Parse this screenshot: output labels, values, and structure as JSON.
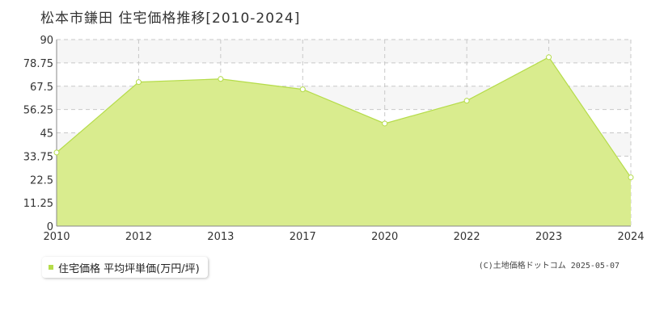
{
  "chart_data": {
    "type": "area",
    "title": "松本市鎌田 住宅価格推移[2010-2024]",
    "xlabel": "",
    "ylabel": "",
    "categories": [
      "2010",
      "2012",
      "2013",
      "2017",
      "2020",
      "2022",
      "2023",
      "2024"
    ],
    "series": [
      {
        "name": "住宅価格 平均坪単価(万円/坪)",
        "values": [
          35.5,
          69.5,
          71.0,
          66.0,
          49.5,
          60.5,
          81.5,
          23.5
        ]
      }
    ],
    "yticks": [
      "0",
      "11.25",
      "22.5",
      "33.75",
      "45",
      "56.25",
      "67.5",
      "78.75",
      "90"
    ],
    "ylim": [
      0,
      90
    ],
    "grid": true,
    "legend_position": "bottom-left"
  },
  "copyright": "(C)土地価格ドットコム 2025-05-07",
  "colors": {
    "area_fill": "#d9ec8e",
    "line": "#b5dc4a",
    "point_fill": "#ffffff",
    "band": "#f6f6f6",
    "grid": "#c8c8c8",
    "axis": "#888888",
    "legend_swatch": "#b5dc4a"
  }
}
